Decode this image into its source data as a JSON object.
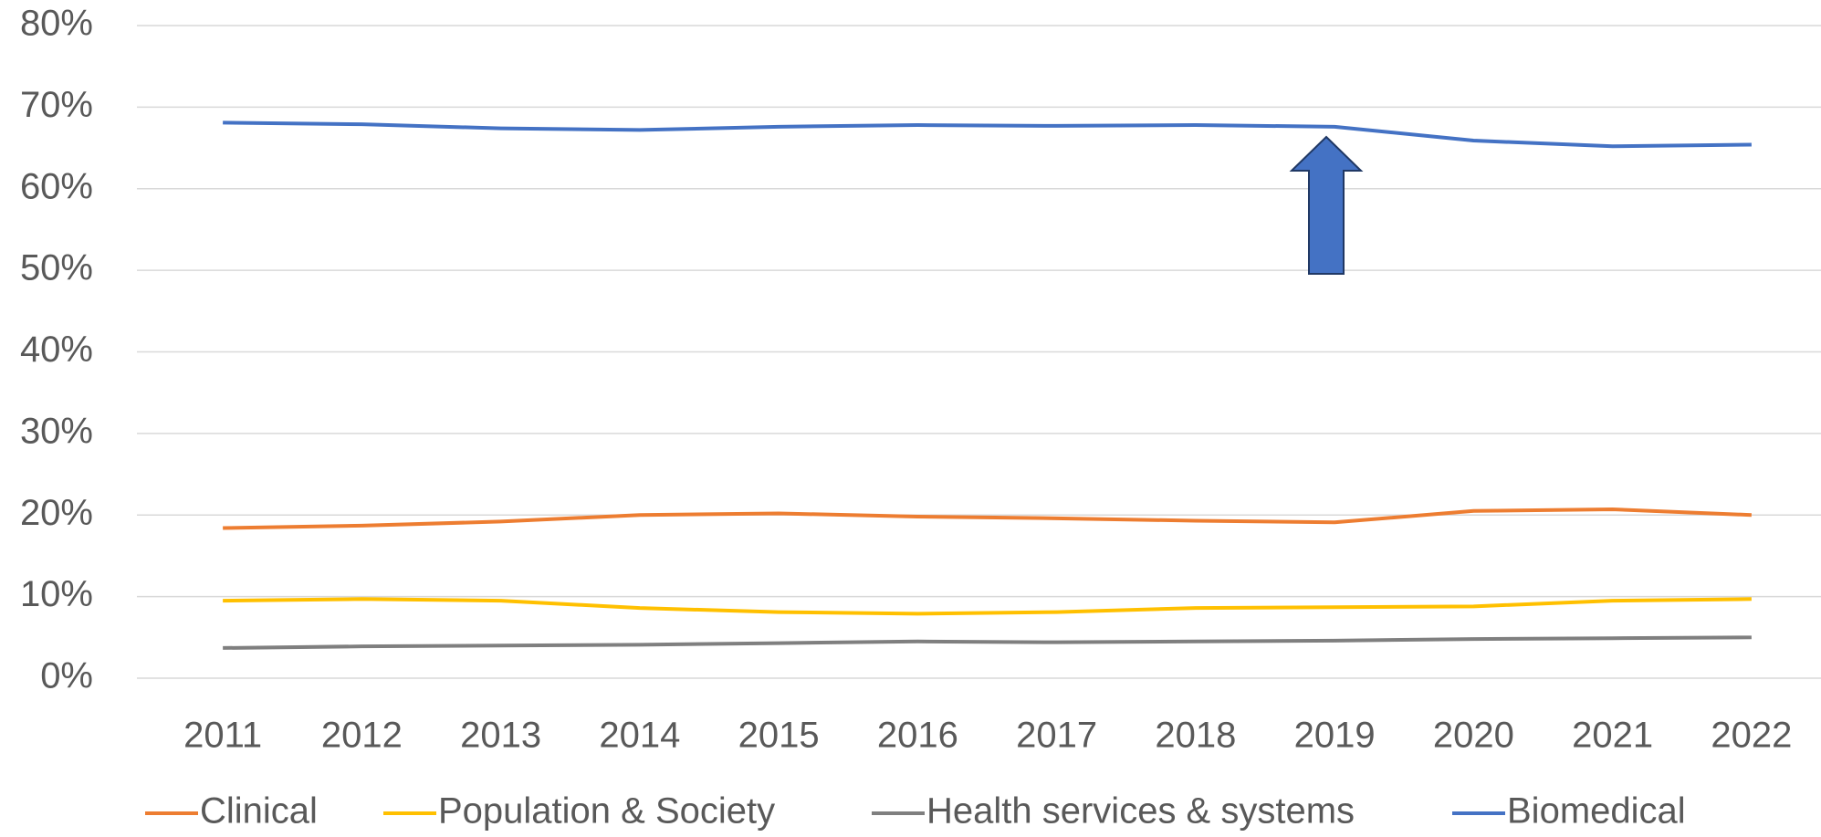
{
  "chart_data": {
    "type": "line",
    "categories": [
      "2011",
      "2012",
      "2013",
      "2014",
      "2015",
      "2016",
      "2017",
      "2018",
      "2019",
      "2020",
      "2021",
      "2022"
    ],
    "series": [
      {
        "name": "Clinical",
        "color": "#ED7D31",
        "values": [
          18.4,
          18.7,
          19.2,
          20.0,
          20.2,
          19.8,
          19.6,
          19.3,
          19.1,
          20.5,
          20.7,
          20.0
        ]
      },
      {
        "name": "Population & Society",
        "color": "#FFC000",
        "values": [
          9.5,
          9.7,
          9.5,
          8.6,
          8.1,
          7.9,
          8.1,
          8.6,
          8.7,
          8.8,
          9.5,
          9.7
        ]
      },
      {
        "name": "Health services & systems",
        "color": "#7F7F7F",
        "values": [
          3.7,
          3.9,
          4.0,
          4.1,
          4.3,
          4.5,
          4.4,
          4.5,
          4.6,
          4.8,
          4.9,
          5.0
        ]
      },
      {
        "name": "Biomedical",
        "color": "#4472C4",
        "values": [
          68.1,
          67.9,
          67.4,
          67.2,
          67.6,
          67.8,
          67.7,
          67.8,
          67.6,
          65.9,
          65.2,
          65.4
        ]
      }
    ],
    "ylim": [
      0,
      80
    ],
    "yticks": [
      {
        "value": 0,
        "label": "0%"
      },
      {
        "value": 10,
        "label": "10%"
      },
      {
        "value": 20,
        "label": "20%"
      },
      {
        "value": 30,
        "label": "30%"
      },
      {
        "value": 40,
        "label": "40%"
      },
      {
        "value": 50,
        "label": "50%"
      },
      {
        "value": 60,
        "label": "60%"
      },
      {
        "value": 70,
        "label": "70%"
      },
      {
        "value": 80,
        "label": "80%"
      }
    ],
    "grid": true,
    "legend": "bottom"
  }
}
